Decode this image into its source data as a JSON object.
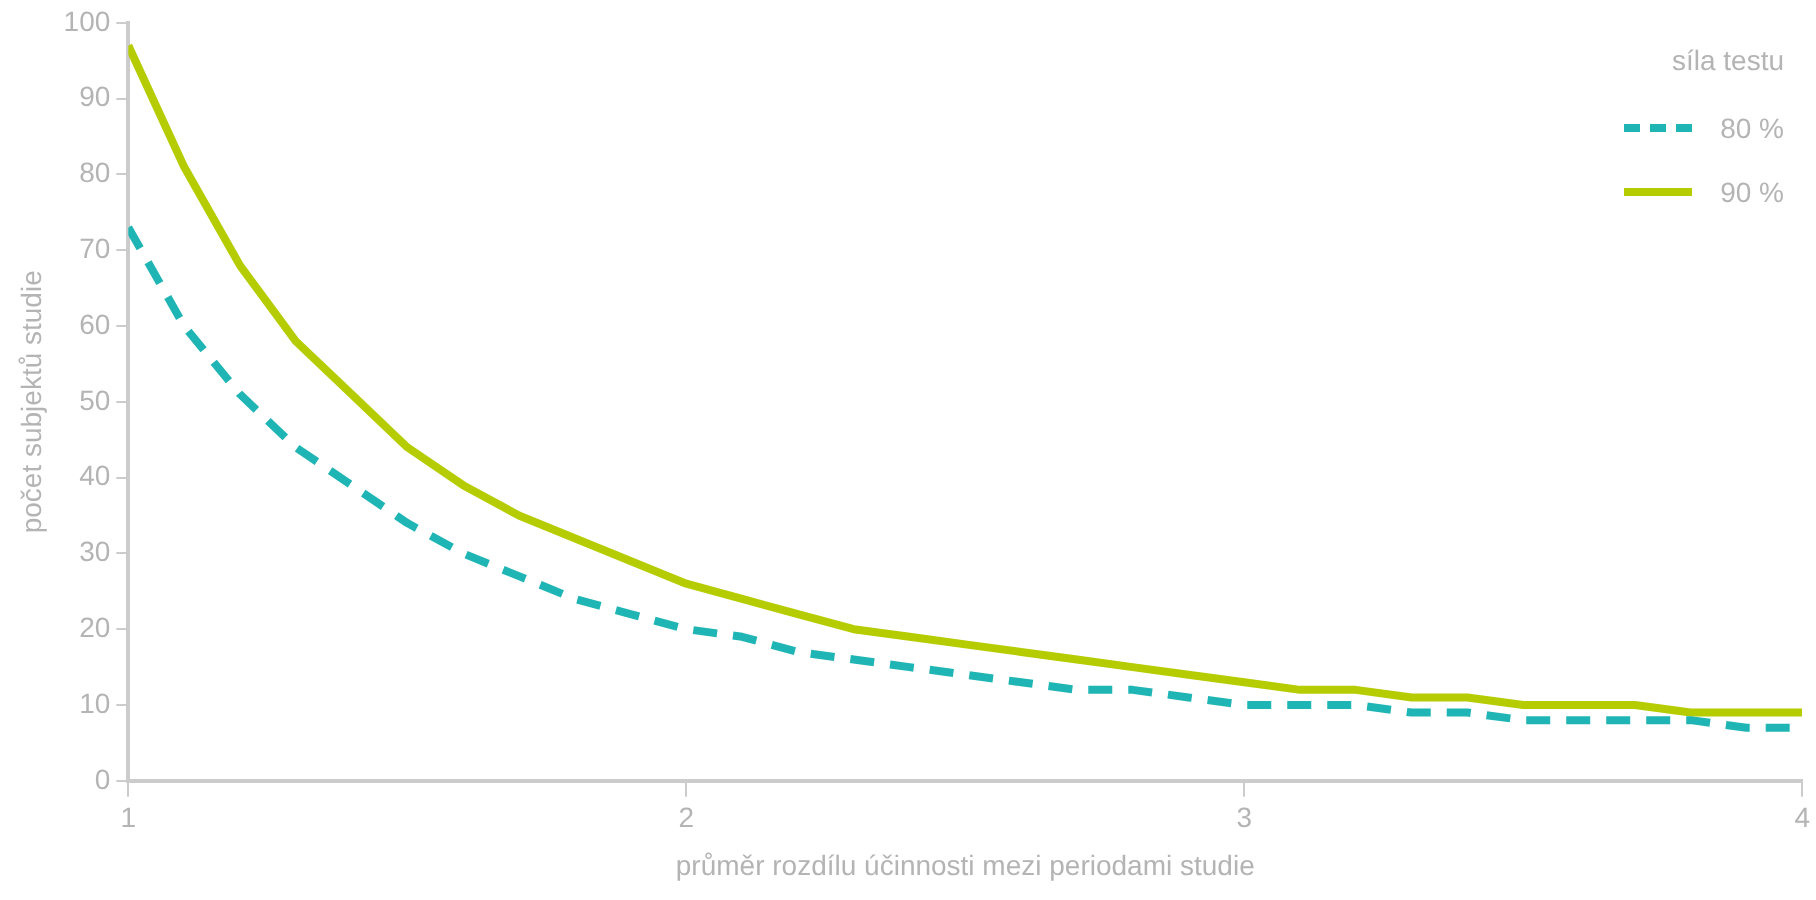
{
  "chart_data": {
    "type": "line",
    "xlabel": "průměr rozdílu účinnosti mezi periodami studie",
    "ylabel": "počet subjektů studie",
    "legend_title": "síla testu",
    "legend": "top right",
    "grid": false,
    "marker": "none",
    "x": [
      1.0,
      1.1,
      1.2,
      1.3,
      1.4,
      1.5,
      1.6,
      1.7,
      1.8,
      1.9,
      2.0,
      2.1,
      2.2,
      2.3,
      2.4,
      2.5,
      2.6,
      2.7,
      2.8,
      2.9,
      3.0,
      3.1,
      3.2,
      3.3,
      3.4,
      3.5,
      3.6,
      3.7,
      3.8,
      3.9,
      4.0
    ],
    "xlim": [
      1,
      4
    ],
    "xticks": [
      1,
      2,
      3,
      4
    ],
    "ylim": [
      0,
      100
    ],
    "yticks": [
      0,
      10,
      20,
      30,
      40,
      50,
      60,
      70,
      80,
      90,
      100
    ],
    "series": [
      {
        "name": "80 %",
        "color": "#20b5b5",
        "line_style": "dashed",
        "values": [
          73,
          60,
          51,
          44,
          39,
          34,
          30,
          27,
          24,
          22,
          20,
          19,
          17,
          16,
          15,
          14,
          13,
          12,
          12,
          11,
          10,
          10,
          10,
          9,
          9,
          8,
          8,
          8,
          8,
          7,
          7
        ]
      },
      {
        "name": "90 %",
        "color": "#b5cc00",
        "line_style": "solid",
        "values": [
          97,
          81,
          68,
          58,
          51,
          44,
          39,
          35,
          32,
          29,
          26,
          24,
          22,
          20,
          19,
          18,
          17,
          16,
          15,
          14,
          13,
          12,
          12,
          11,
          11,
          10,
          10,
          10,
          9,
          9,
          9
        ]
      }
    ]
  }
}
